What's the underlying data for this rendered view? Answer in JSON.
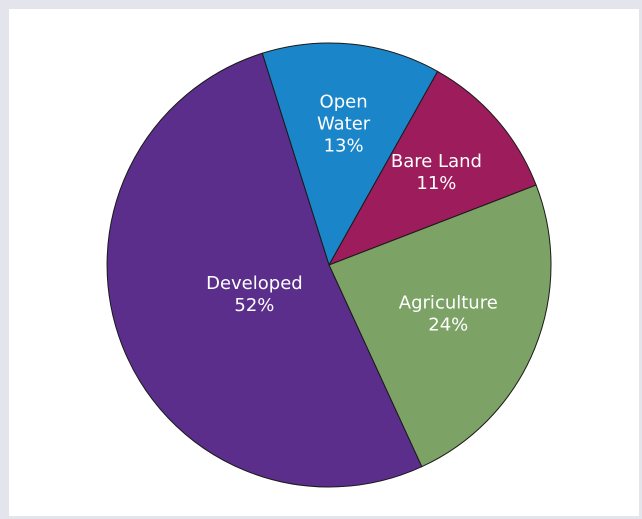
{
  "chart_data": {
    "type": "pie",
    "title": "",
    "slices": [
      {
        "label_lines": [
          "Open",
          "Water"
        ],
        "percent_text": "13%",
        "value": 13,
        "color": "#1a85c8"
      },
      {
        "label_lines": [
          "Bare Land"
        ],
        "percent_text": "11%",
        "value": 11,
        "color": "#9c1c5c"
      },
      {
        "label_lines": [
          "Agriculture"
        ],
        "percent_text": "24%",
        "value": 24,
        "color": "#7ca266"
      },
      {
        "label_lines": [
          "Developed"
        ],
        "percent_text": "52%",
        "value": 52,
        "color": "#5b2e8c"
      }
    ]
  }
}
